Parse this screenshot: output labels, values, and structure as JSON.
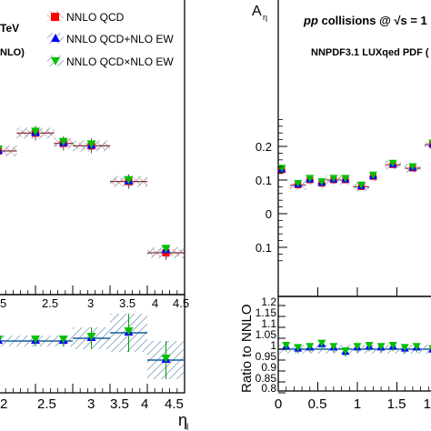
{
  "colors": {
    "nnlo_qcd": "#ff0000",
    "nnlo_qcd_nlo_ew": "#0000ff",
    "nnlo_qcd_x_nlo_ew": "#00c000",
    "band": "#6a8fb0",
    "band_red": "#e06060"
  },
  "left": {
    "partial_label_tev": "TeV",
    "partial_label_nlo": "NLO)",
    "legend": [
      {
        "key": "nnlo_qcd",
        "label": "NNLO QCD",
        "marker": "square"
      },
      {
        "key": "nnlo_qcd_nlo_ew",
        "label": "NNLO QCD+NLO EW",
        "marker": "triangle-up"
      },
      {
        "key": "nnlo_qcd_x_nlo_ew",
        "label": "NNLO QCD×NLO EW",
        "marker": "triangle-down"
      }
    ],
    "xlabel": "η",
    "xlabel_sub": "l",
    "xticks": [
      "2.5",
      "3",
      "3.5",
      "4",
      "4.5"
    ],
    "xticks_partial": [
      "5"
    ],
    "ratio_xticks": [
      "2.5",
      "3",
      "3.5",
      "4",
      "4.5"
    ],
    "ratio_xticks_partial": [
      "2"
    ]
  },
  "right": {
    "ylabel": "A",
    "ylabel_sub": "η",
    "header": "pp collisions @ √s = 1",
    "header_pp": "pp",
    "header_rest": " collisions @ ",
    "header_sqrt": "√s = 1",
    "pdf_label": "NNPDF3.1 LUXqed PDF (",
    "yticks": [
      "0.1",
      "0.2",
      "0",
      "0.1"
    ],
    "ratio_ylabel": "Ratio to NNLO",
    "ratio_yticks": [
      "1.2",
      "1.15",
      "1.1",
      "1.05",
      "1",
      "0.95",
      "0.9",
      "0.85",
      "0.8"
    ],
    "xticks": [
      "0",
      "0.5",
      "1",
      "1.5"
    ],
    "xticks_partial": [
      "1"
    ]
  },
  "chart_data": [
    {
      "type": "scatter",
      "panel": "left-main",
      "xlabel": "η_l",
      "x_edges": [
        1.75,
        2.25,
        2.75,
        3.0,
        3.25,
        3.75,
        4.25,
        4.5
      ],
      "x": [
        2.0,
        2.5,
        2.875,
        3.25,
        3.75,
        4.25
      ],
      "xerr": [
        0.25,
        0.25,
        0.125,
        0.25,
        0.25,
        0.25
      ],
      "series": [
        {
          "name": "NNLO QCD",
          "values": [
            0.55,
            0.62,
            0.58,
            0.57,
            0.43,
            0.15
          ]
        },
        {
          "name": "NNLO QCD+NLO EW",
          "values": [
            0.55,
            0.62,
            0.58,
            0.57,
            0.43,
            0.16
          ]
        },
        {
          "name": "NNLO QCD×NLO EW",
          "values": [
            0.55,
            0.62,
            0.58,
            0.57,
            0.43,
            0.16
          ]
        }
      ],
      "xlim": [
        2.0,
        4.5
      ]
    },
    {
      "type": "scatter",
      "panel": "left-ratio",
      "x": [
        2.0,
        2.5,
        2.875,
        3.25,
        3.75,
        4.25
      ],
      "xerr": [
        0.25,
        0.25,
        0.125,
        0.25,
        0.25,
        0.25
      ],
      "series": [
        {
          "name": "NNLO QCD+NLO EW",
          "values": [
            1.005,
            1.005,
            1.005,
            1.01,
            1.02,
            0.97
          ]
        },
        {
          "name": "NNLO QCD×NLO EW",
          "values": [
            1.005,
            1.005,
            1.005,
            1.01,
            1.02,
            0.97
          ]
        }
      ],
      "band_half_width": [
        0.01,
        0.01,
        0.01,
        0.02,
        0.035,
        0.035
      ],
      "xlim": [
        2.0,
        4.5
      ]
    },
    {
      "type": "scatter",
      "panel": "right-main",
      "ylabel": "A_η",
      "x": [
        0.0,
        0.25,
        0.4,
        0.55,
        0.7,
        0.85,
        1.05,
        1.2,
        1.45,
        1.7,
        1.95
      ],
      "xerr": [
        0.05,
        0.1,
        0.05,
        0.05,
        0.1,
        0.05,
        0.1,
        0.05,
        0.1,
        0.1,
        0.1
      ],
      "series": [
        {
          "name": "NNLO QCD",
          "values": [
            0.13,
            0.085,
            0.1,
            0.09,
            0.1,
            0.1,
            0.08,
            0.11,
            0.145,
            0.135,
            0.205
          ]
        },
        {
          "name": "NNLO QCD+NLO EW",
          "values": [
            0.13,
            0.085,
            0.1,
            0.09,
            0.1,
            0.1,
            0.08,
            0.11,
            0.145,
            0.135,
            0.205
          ]
        },
        {
          "name": "NNLO QCD×NLO EW",
          "values": [
            0.13,
            0.085,
            0.1,
            0.09,
            0.1,
            0.1,
            0.08,
            0.11,
            0.145,
            0.135,
            0.205
          ]
        }
      ],
      "ylim": [
        -0.15,
        0.4
      ]
    },
    {
      "type": "scatter",
      "panel": "right-ratio",
      "ylabel": "Ratio to NNLO",
      "x": [
        0.1,
        0.25,
        0.4,
        0.55,
        0.7,
        0.85,
        1.0,
        1.15,
        1.3,
        1.45,
        1.6,
        1.75,
        1.95
      ],
      "series": [
        {
          "name": "NNLO QCD+NLO EW",
          "values": [
            1.01,
            1.0,
            1.005,
            1.02,
            1.005,
            0.985,
            1.005,
            1.01,
            1.005,
            1.01,
            1.0,
            1.005,
            0.995
          ]
        },
        {
          "name": "NNLO QCD×NLO EW",
          "values": [
            1.01,
            1.0,
            1.005,
            1.02,
            1.005,
            0.985,
            1.005,
            1.01,
            1.005,
            1.01,
            1.0,
            1.005,
            0.995
          ]
        }
      ],
      "ylim": [
        0.8,
        1.2
      ],
      "xlim": [
        0.0,
        2.0
      ]
    }
  ]
}
